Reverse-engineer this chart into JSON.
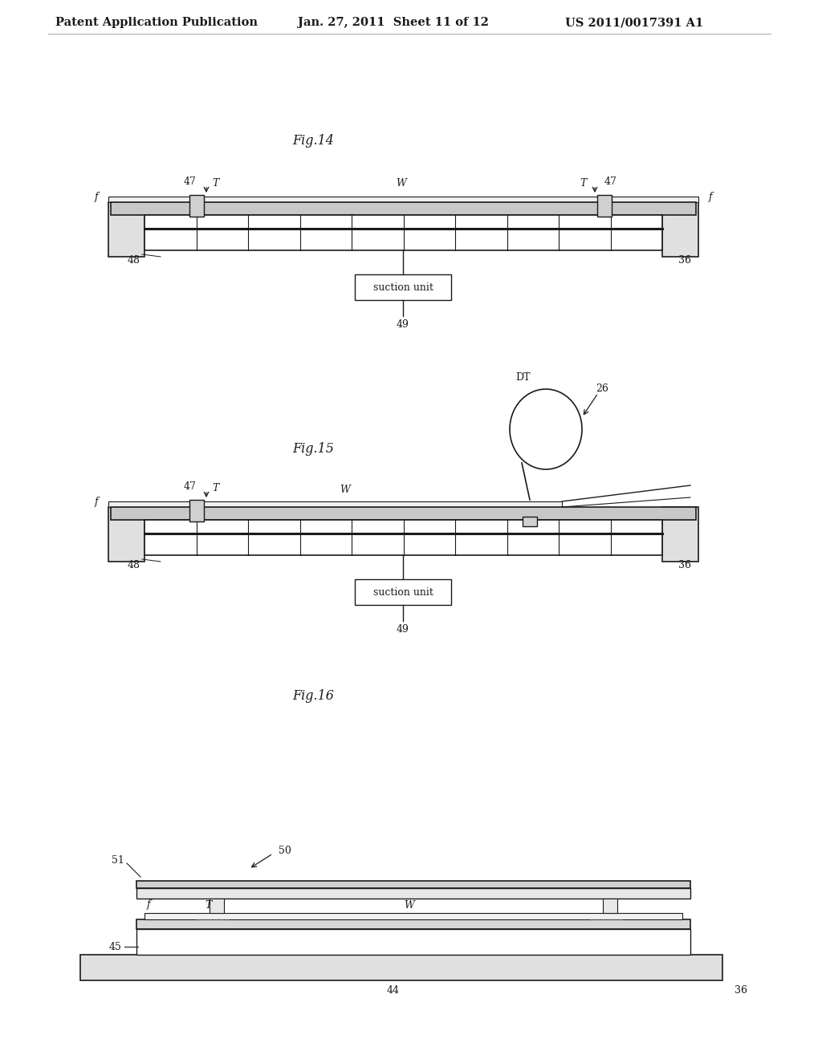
{
  "bg": "#ffffff",
  "header_left": "Patent Application Publication",
  "header_mid": "Jan. 27, 2011  Sheet 11 of 12",
  "header_right": "US 2011/0017391 A1",
  "fig14_title": "Fig.14",
  "fig15_title": "Fig.15",
  "fig16_title": "Fig.16",
  "lc": "#1a1a1a",
  "gc": "#888888"
}
